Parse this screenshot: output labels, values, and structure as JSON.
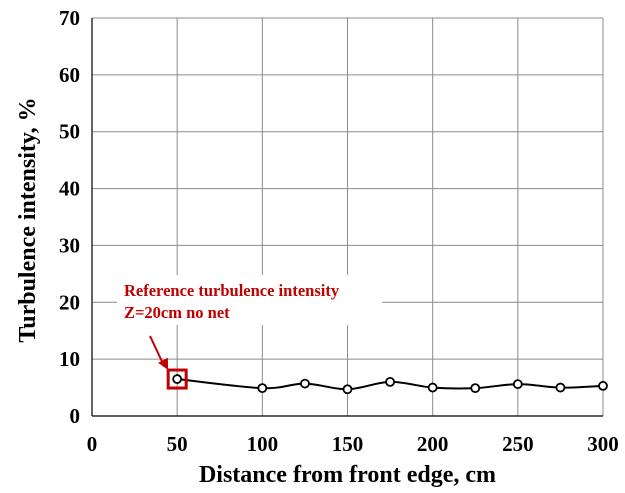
{
  "chart_data": {
    "type": "line",
    "title": "",
    "xlabel": "Distance from front edge, cm",
    "ylabel": "Turbulence intensity, %",
    "xlim": [
      0,
      300
    ],
    "ylim": [
      0,
      70
    ],
    "xticks": [
      0,
      50,
      100,
      150,
      200,
      250,
      300
    ],
    "yticks": [
      0,
      10,
      20,
      30,
      40,
      50,
      60,
      70
    ],
    "grid": true,
    "series": [
      {
        "x": [
          50,
          100,
          125,
          150,
          175,
          200,
          225,
          250,
          275,
          300
        ],
        "y": [
          6.5,
          4.9,
          5.7,
          4.7,
          6.0,
          5.0,
          4.9,
          5.6,
          5.0,
          5.3
        ],
        "color": "#000000",
        "marker": "circle",
        "smooth": true
      }
    ],
    "annotation": {
      "lines": [
        "Reference turbulence intensity",
        "Z=20cm no net"
      ],
      "color": "#c00000",
      "target": {
        "x": 50,
        "y": 6.5
      }
    }
  }
}
